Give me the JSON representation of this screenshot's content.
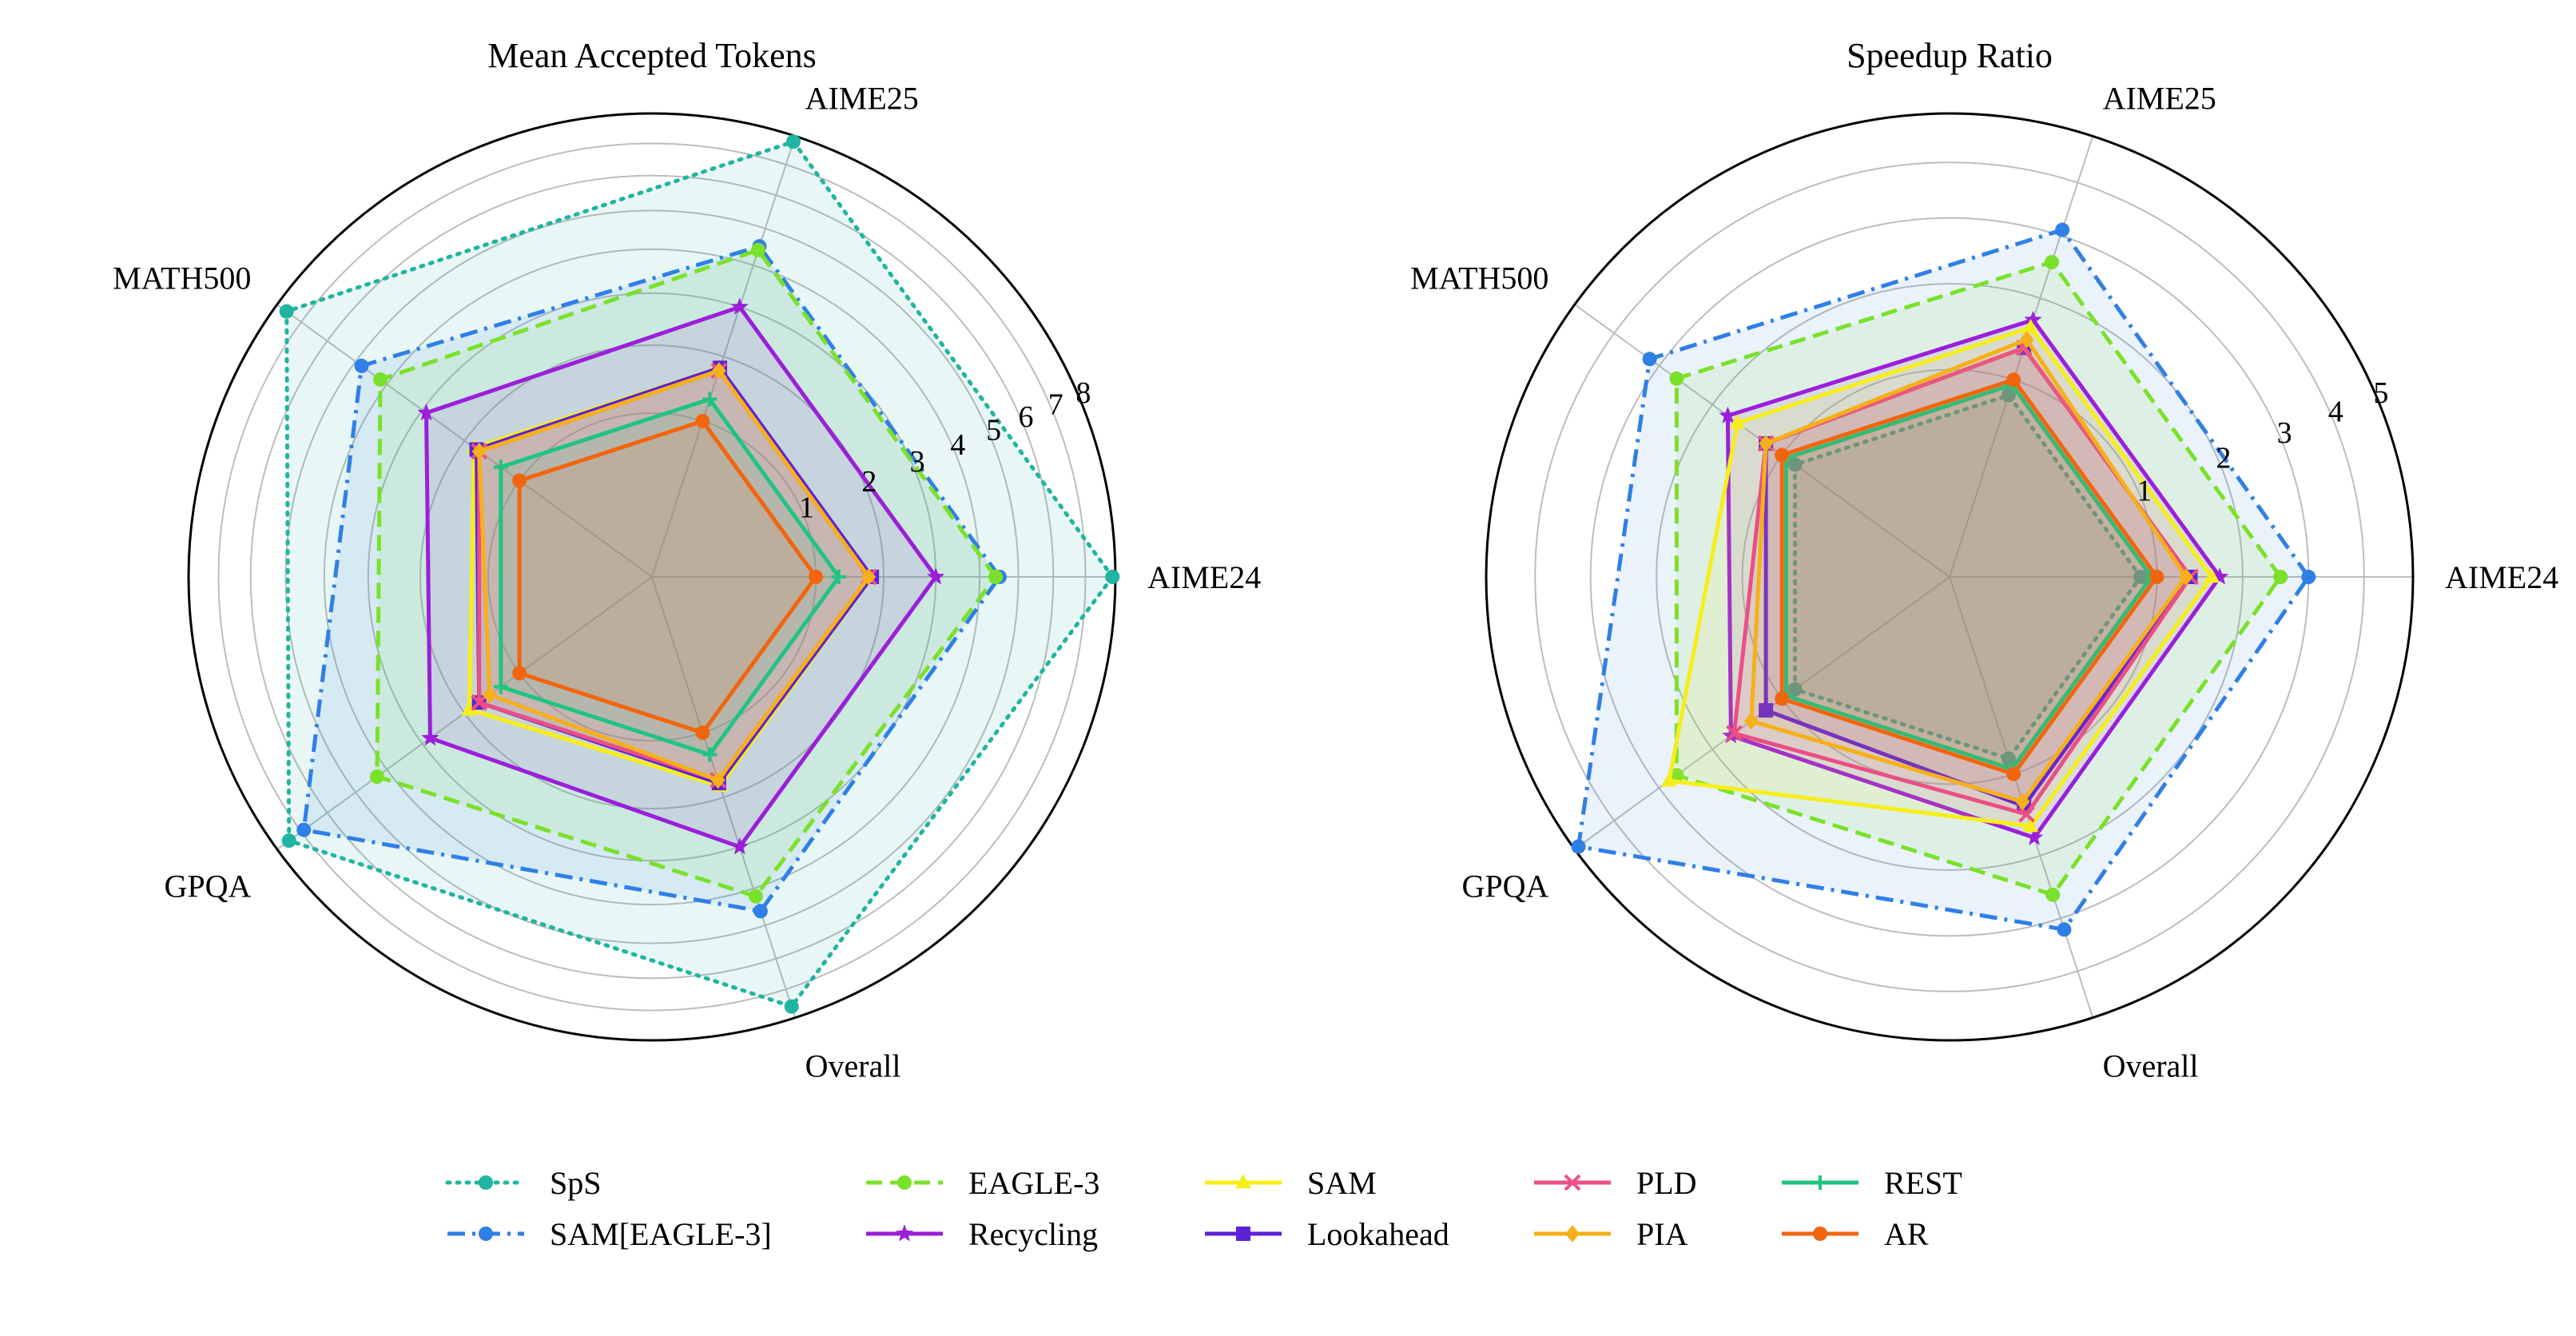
{
  "chart_data": [
    {
      "type": "radar",
      "title": "Mean Accepted Tokens",
      "categories": [
        "AIME24",
        "AIME25",
        "MATH500",
        "GPQA",
        "Overall"
      ],
      "rticks": [
        1,
        2,
        3,
        4,
        5,
        6,
        7,
        8
      ],
      "rlim": [
        0,
        8
      ],
      "radial_scale": "sqrt",
      "series": [
        {
          "name": "SpS",
          "values": [
            7.9,
            7.8,
            7.6,
            7.5,
            7.6
          ]
        },
        {
          "name": "SAM[EAGLE-3]",
          "values": [
            4.5,
            4.5,
            4.8,
            6.9,
            4.6
          ]
        },
        {
          "name": "EAGLE-3",
          "values": [
            4.4,
            4.4,
            4.2,
            4.3,
            4.2
          ]
        },
        {
          "name": "Recycling",
          "values": [
            3.0,
            3.0,
            2.9,
            2.8,
            3.0
          ]
        },
        {
          "name": "SAM",
          "values": [
            1.8,
            1.8,
            1.8,
            1.9,
            1.8
          ]
        },
        {
          "name": "Lookahead",
          "values": [
            1.8,
            1.8,
            1.75,
            1.7,
            1.75
          ]
        },
        {
          "name": "PLD",
          "values": [
            1.75,
            1.75,
            1.7,
            1.7,
            1.7
          ]
        },
        {
          "name": "PIA",
          "values": [
            1.75,
            1.75,
            1.7,
            1.5,
            1.7
          ]
        },
        {
          "name": "REST",
          "values": [
            1.3,
            1.3,
            1.3,
            1.3,
            1.3
          ]
        },
        {
          "name": "AR",
          "values": [
            1.0,
            1.0,
            1.0,
            1.0,
            1.0
          ]
        }
      ]
    },
    {
      "type": "radar",
      "title": "Speedup Ratio",
      "categories": [
        "AIME24",
        "AIME25",
        "MATH500",
        "GPQA",
        "Overall"
      ],
      "rticks": [
        1,
        2,
        3,
        4,
        5
      ],
      "rlim": [
        0,
        5
      ],
      "radial_scale": "sqrt",
      "series": [
        {
          "name": "SpS",
          "values": [
            0.85,
            0.85,
            0.85,
            0.85,
            0.85
          ]
        },
        {
          "name": "SAM[EAGLE-3]",
          "values": [
            3.0,
            3.1,
            3.2,
            4.9,
            3.2
          ]
        },
        {
          "name": "EAGLE-3",
          "values": [
            2.55,
            2.55,
            2.65,
            2.65,
            2.6
          ]
        },
        {
          "name": "Recycling",
          "values": [
            1.7,
            1.7,
            1.75,
            1.7,
            1.75
          ]
        },
        {
          "name": "SAM",
          "values": [
            1.6,
            1.6,
            1.6,
            2.8,
            1.6
          ]
        },
        {
          "name": "Lookahead",
          "values": [
            1.35,
            1.35,
            1.2,
            1.2,
            1.35
          ]
        },
        {
          "name": "PLD",
          "values": [
            1.35,
            1.35,
            1.2,
            1.65,
            1.45
          ]
        },
        {
          "name": "PIA",
          "values": [
            1.3,
            1.45,
            1.2,
            1.4,
            1.3
          ]
        },
        {
          "name": "REST",
          "values": [
            0.95,
            0.95,
            0.95,
            0.95,
            0.95
          ]
        },
        {
          "name": "AR",
          "values": [
            1.0,
            1.0,
            1.0,
            1.0,
            1.0
          ]
        }
      ]
    }
  ],
  "legend": {
    "placement": "bottom",
    "entries": [
      {
        "name": "SpS",
        "color": "#1fb5a0",
        "dash": "dotted",
        "marker": "circle"
      },
      {
        "name": "SAM[EAGLE-3]",
        "color": "#2f7fe6",
        "dash": "dashdot",
        "marker": "circle"
      },
      {
        "name": "EAGLE-3",
        "color": "#7ae12a",
        "dash": "dashed",
        "marker": "circle"
      },
      {
        "name": "Recycling",
        "color": "#9b1fd9",
        "dash": "solid",
        "marker": "star"
      },
      {
        "name": "SAM",
        "color": "#f6ee1a",
        "dash": "solid",
        "marker": "triangle"
      },
      {
        "name": "Lookahead",
        "color": "#5b22d8",
        "dash": "solid",
        "marker": "square"
      },
      {
        "name": "PLD",
        "color": "#ea4f85",
        "dash": "solid",
        "marker": "x"
      },
      {
        "name": "PIA",
        "color": "#f5b01a",
        "dash": "solid",
        "marker": "diamond"
      },
      {
        "name": "REST",
        "color": "#21c47f",
        "dash": "solid",
        "marker": "plus"
      },
      {
        "name": "AR",
        "color": "#f2650f",
        "dash": "solid",
        "marker": "circle"
      }
    ]
  },
  "fills": {
    "SpS": "#1fb5a0",
    "SAM[EAGLE-3]": "#2f7fe6",
    "EAGLE-3": "#7ae12a",
    "Recycling": "#9b1fd9",
    "SAM": "#f6ee1a",
    "Lookahead": "#5b22d8",
    "PLD": "#ea4f85",
    "PIA": "#f5b01a",
    "REST": "#21c47f",
    "AR": "#f2650f"
  }
}
